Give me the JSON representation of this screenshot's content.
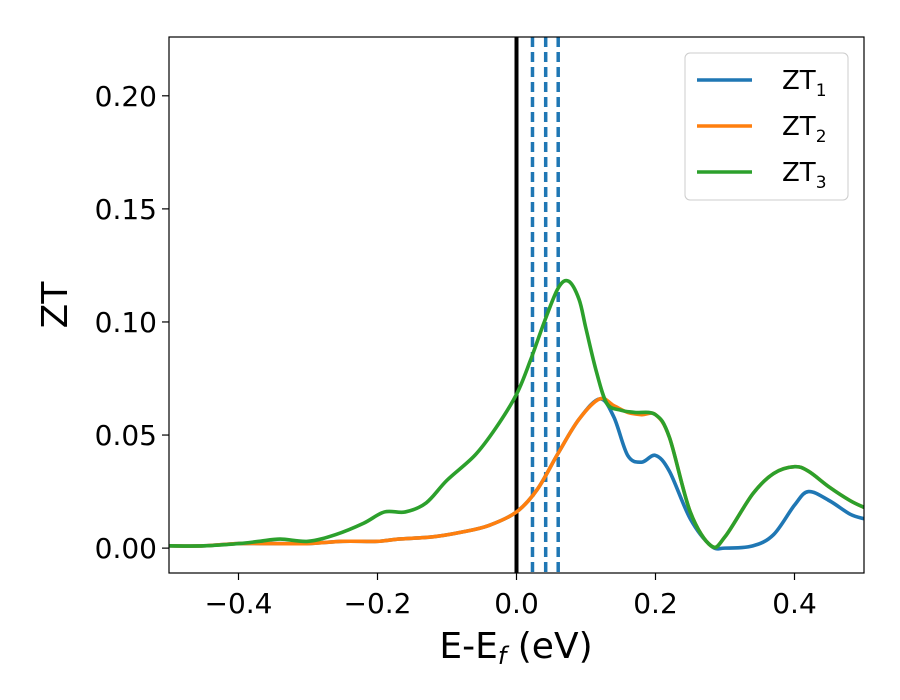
{
  "chart_data": {
    "type": "line",
    "xlabel": "E-E",
    "xlabel_sub": "f",
    "xlabel_unit": " (eV)",
    "ylabel": "ZT",
    "xlim": [
      -0.5,
      0.5
    ],
    "ylim": [
      -0.011,
      0.226
    ],
    "xticks": [
      -0.4,
      -0.2,
      0.0,
      0.2,
      0.4
    ],
    "xtick_labels": [
      "−0.4",
      "−0.2",
      "0.0",
      "0.2",
      "0.4"
    ],
    "yticks": [
      0.0,
      0.05,
      0.1,
      0.15,
      0.2
    ],
    "ytick_labels": [
      "0.00",
      "0.05",
      "0.10",
      "0.15",
      "0.20"
    ],
    "grid": false,
    "legend_position": "top-right",
    "reference_lines": {
      "solid": {
        "x": 0.0,
        "color": "#000000"
      },
      "dashed": {
        "x": [
          0.023,
          0.042,
          0.06
        ],
        "color": "#1f77b4"
      }
    },
    "series": [
      {
        "name": "ZT",
        "name_sub": "1",
        "color": "#1f77b4",
        "x": [
          -0.5,
          -0.45,
          -0.4,
          -0.35,
          -0.3,
          -0.25,
          -0.2,
          -0.17,
          -0.12,
          -0.08,
          -0.04,
          0.0,
          0.03,
          0.06,
          0.09,
          0.12,
          0.14,
          0.16,
          0.18,
          0.2,
          0.22,
          0.25,
          0.28,
          0.3,
          0.34,
          0.37,
          0.4,
          0.42,
          0.45,
          0.48,
          0.5
        ],
        "y": [
          0.001,
          0.001,
          0.002,
          0.002,
          0.002,
          0.003,
          0.003,
          0.004,
          0.005,
          0.007,
          0.01,
          0.016,
          0.026,
          0.042,
          0.057,
          0.066,
          0.058,
          0.041,
          0.038,
          0.041,
          0.034,
          0.013,
          0.001,
          0.0,
          0.001,
          0.006,
          0.019,
          0.025,
          0.021,
          0.015,
          0.013
        ]
      },
      {
        "name": "ZT",
        "name_sub": "2",
        "color": "#ff7f0e",
        "x": [
          -0.5,
          -0.45,
          -0.4,
          -0.35,
          -0.3,
          -0.25,
          -0.2,
          -0.17,
          -0.12,
          -0.08,
          -0.04,
          0.0,
          0.03,
          0.06,
          0.09,
          0.12,
          0.14,
          0.16,
          0.18,
          0.2,
          0.22,
          0.25,
          0.28,
          0.3,
          0.34,
          0.37,
          0.4,
          0.42,
          0.45,
          0.48,
          0.5
        ],
        "y": [
          0.001,
          0.001,
          0.002,
          0.002,
          0.002,
          0.003,
          0.003,
          0.004,
          0.005,
          0.007,
          0.01,
          0.016,
          0.026,
          0.042,
          0.057,
          0.066,
          0.063,
          0.06,
          0.059,
          0.059,
          0.049,
          0.016,
          0.001,
          0.005,
          0.024,
          0.033,
          0.036,
          0.034,
          0.027,
          0.021,
          0.018
        ]
      },
      {
        "name": "ZT",
        "name_sub": "3",
        "color": "#2ca02c",
        "x": [
          -0.5,
          -0.45,
          -0.4,
          -0.37,
          -0.34,
          -0.3,
          -0.26,
          -0.22,
          -0.19,
          -0.16,
          -0.13,
          -0.1,
          -0.06,
          -0.03,
          0.0,
          0.02,
          0.04,
          0.06,
          0.075,
          0.09,
          0.1,
          0.115,
          0.13,
          0.15,
          0.17,
          0.2,
          0.22,
          0.25,
          0.28,
          0.3,
          0.34,
          0.37,
          0.4,
          0.42,
          0.45,
          0.48,
          0.5
        ],
        "y": [
          0.001,
          0.001,
          0.002,
          0.003,
          0.004,
          0.003,
          0.006,
          0.011,
          0.016,
          0.016,
          0.02,
          0.03,
          0.041,
          0.053,
          0.068,
          0.083,
          0.1,
          0.115,
          0.118,
          0.11,
          0.097,
          0.078,
          0.064,
          0.061,
          0.06,
          0.059,
          0.049,
          0.016,
          0.001,
          0.005,
          0.024,
          0.033,
          0.036,
          0.034,
          0.027,
          0.021,
          0.018
        ]
      }
    ]
  }
}
